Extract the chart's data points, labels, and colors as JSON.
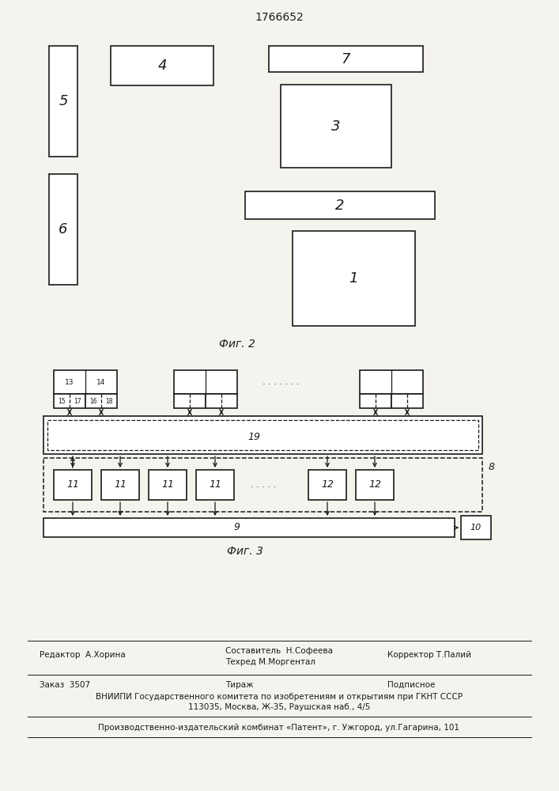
{
  "title": "1766652",
  "fig2_label": "Фиг. 2",
  "fig3_label": "Фиг. 3",
  "bg_color": "#f5f3ee",
  "box_color": "#1a1a1a",
  "box_fill": "#ffffff",
  "footer": {
    "editor": "Редактор  А.Хорина",
    "composer": "Составитель  Н.Софеева",
    "techred": "Техред М.Моргентал",
    "corrector": "Корректор Т.Палий",
    "order": "Заказ  3507",
    "tirazh": "Тираж",
    "podpisnoe": "Подписное",
    "vniipи": "ВНИИПИ Государственного комитета по изобретениям и открытиям при ГКНТ СССР",
    "address": "113035, Москва, Ж-35, Раушская наб., 4/5",
    "patent": "Производственно-издательский комбинат «Патент», г. Ужгород, ул.Гагарина, 101"
  }
}
